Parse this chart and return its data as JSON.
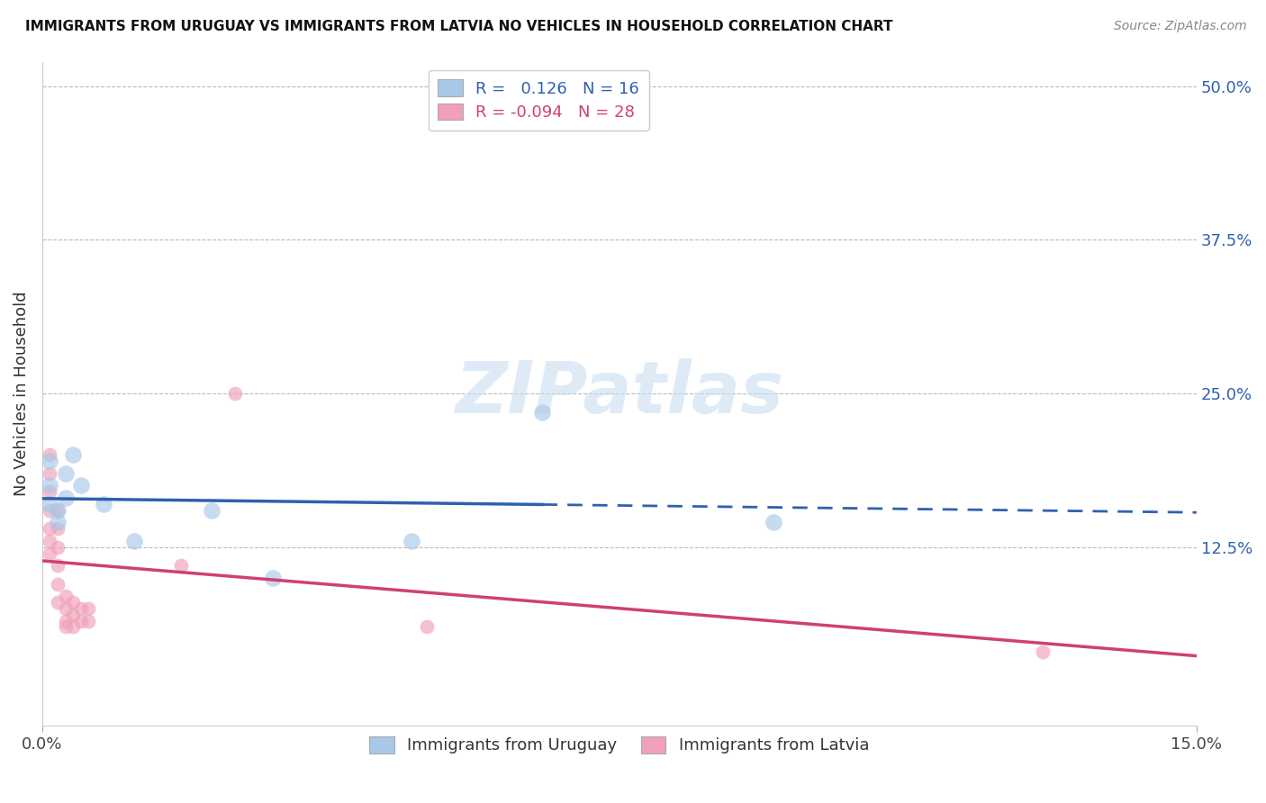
{
  "title": "IMMIGRANTS FROM URUGUAY VS IMMIGRANTS FROM LATVIA NO VEHICLES IN HOUSEHOLD CORRELATION CHART",
  "source": "Source: ZipAtlas.com",
  "ylabel": "No Vehicles in Household",
  "xlim": [
    0.0,
    0.15
  ],
  "ylim": [
    -0.02,
    0.52
  ],
  "ytick_positions_right": [
    0.5,
    0.375,
    0.25,
    0.125
  ],
  "ytick_labels_right": [
    "50.0%",
    "37.5%",
    "25.0%",
    "12.5%"
  ],
  "xtick_positions": [
    0.0,
    0.15
  ],
  "xtick_labels": [
    "0.0%",
    "15.0%"
  ],
  "grid_color": "#bbbbbb",
  "background_color": "#ffffff",
  "uruguay_color": "#a8c8e8",
  "latvia_color": "#f0a0b8",
  "uruguay_line_color": "#3060b0",
  "latvia_line_color": "#d04070",
  "legend_R_uruguay": " 0.126",
  "legend_N_uruguay": "16",
  "legend_R_latvia": "-0.094",
  "legend_N_latvia": "28",
  "legend_labels": [
    "Immigrants from Uruguay",
    "Immigrants from Latvia"
  ],
  "uruguay_scatter": [
    [
      0.001,
      0.195
    ],
    [
      0.001,
      0.175
    ],
    [
      0.001,
      0.16
    ],
    [
      0.002,
      0.155
    ],
    [
      0.002,
      0.145
    ],
    [
      0.003,
      0.185
    ],
    [
      0.003,
      0.165
    ],
    [
      0.004,
      0.2
    ],
    [
      0.005,
      0.175
    ],
    [
      0.008,
      0.16
    ],
    [
      0.012,
      0.13
    ],
    [
      0.022,
      0.155
    ],
    [
      0.03,
      0.1
    ],
    [
      0.048,
      0.13
    ],
    [
      0.065,
      0.235
    ],
    [
      0.095,
      0.145
    ]
  ],
  "latvia_scatter": [
    [
      0.001,
      0.2
    ],
    [
      0.001,
      0.185
    ],
    [
      0.001,
      0.17
    ],
    [
      0.001,
      0.155
    ],
    [
      0.001,
      0.14
    ],
    [
      0.001,
      0.13
    ],
    [
      0.001,
      0.12
    ],
    [
      0.002,
      0.155
    ],
    [
      0.002,
      0.14
    ],
    [
      0.002,
      0.125
    ],
    [
      0.002,
      0.11
    ],
    [
      0.002,
      0.095
    ],
    [
      0.002,
      0.08
    ],
    [
      0.003,
      0.085
    ],
    [
      0.003,
      0.075
    ],
    [
      0.003,
      0.065
    ],
    [
      0.003,
      0.06
    ],
    [
      0.004,
      0.08
    ],
    [
      0.004,
      0.07
    ],
    [
      0.004,
      0.06
    ],
    [
      0.005,
      0.075
    ],
    [
      0.005,
      0.065
    ],
    [
      0.006,
      0.075
    ],
    [
      0.006,
      0.065
    ],
    [
      0.018,
      0.11
    ],
    [
      0.025,
      0.25
    ],
    [
      0.05,
      0.06
    ],
    [
      0.13,
      0.04
    ]
  ],
  "uruguay_size": 180,
  "latvia_size": 130,
  "uruguay_alpha": 0.65,
  "latvia_alpha": 0.65,
  "watermark_text": "ZIPatlas",
  "watermark_color": "#c8dff0",
  "watermark_alpha": 0.6,
  "watermark_fontsize": 58
}
